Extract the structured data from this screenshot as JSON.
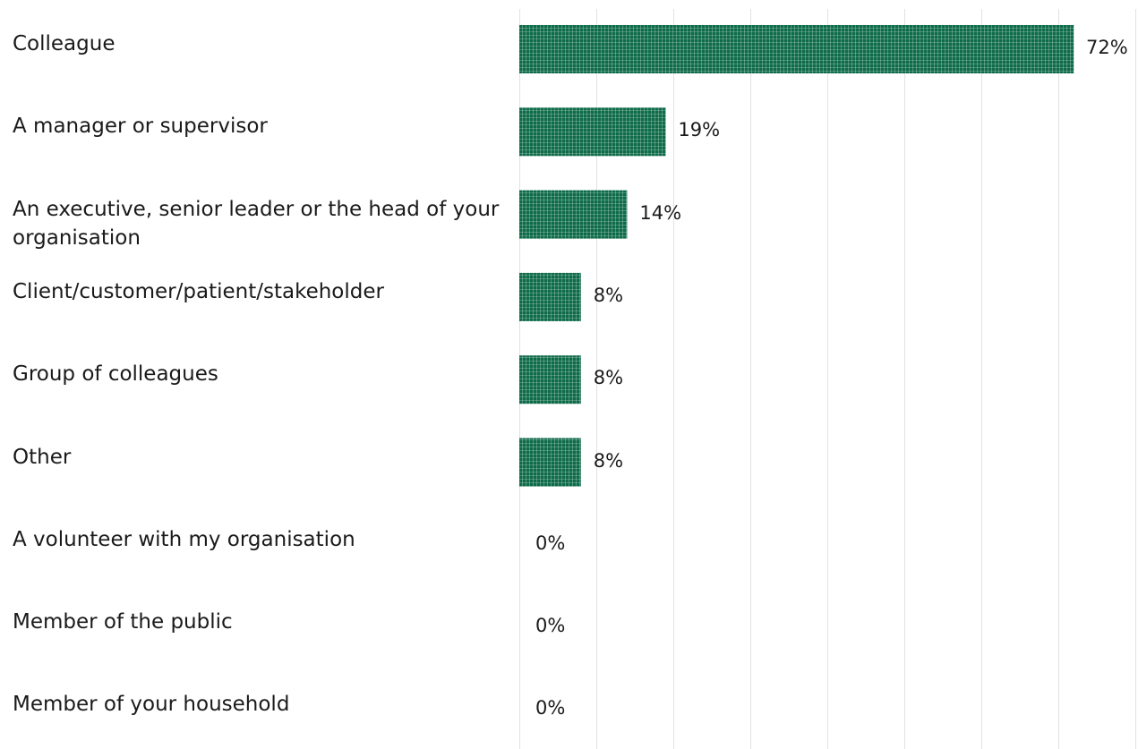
{
  "colors": {
    "bar": "#0e6b4a",
    "bar_pattern": "#e7efe9",
    "grid": "#e2e2e2",
    "text": "#1a1a1a"
  },
  "chart_data": {
    "type": "bar",
    "orientation": "horizontal",
    "categories": [
      "Colleague",
      "A manager or supervisor",
      "An executive, senior leader or the head of your organisation",
      "Client/customer/patient/stakeholder",
      "Group of colleagues",
      "Other",
      "A volunteer with my organisation",
      "Member of the public",
      "Member of your household"
    ],
    "values": [
      72,
      19,
      14,
      8,
      8,
      8,
      0,
      0,
      0
    ],
    "value_labels": [
      "72%",
      "19%",
      "14%",
      "8%",
      "8%",
      "8%",
      "0%",
      "0%",
      "0%"
    ],
    "xlim": [
      0,
      80
    ],
    "grid": true,
    "legend": "none"
  }
}
